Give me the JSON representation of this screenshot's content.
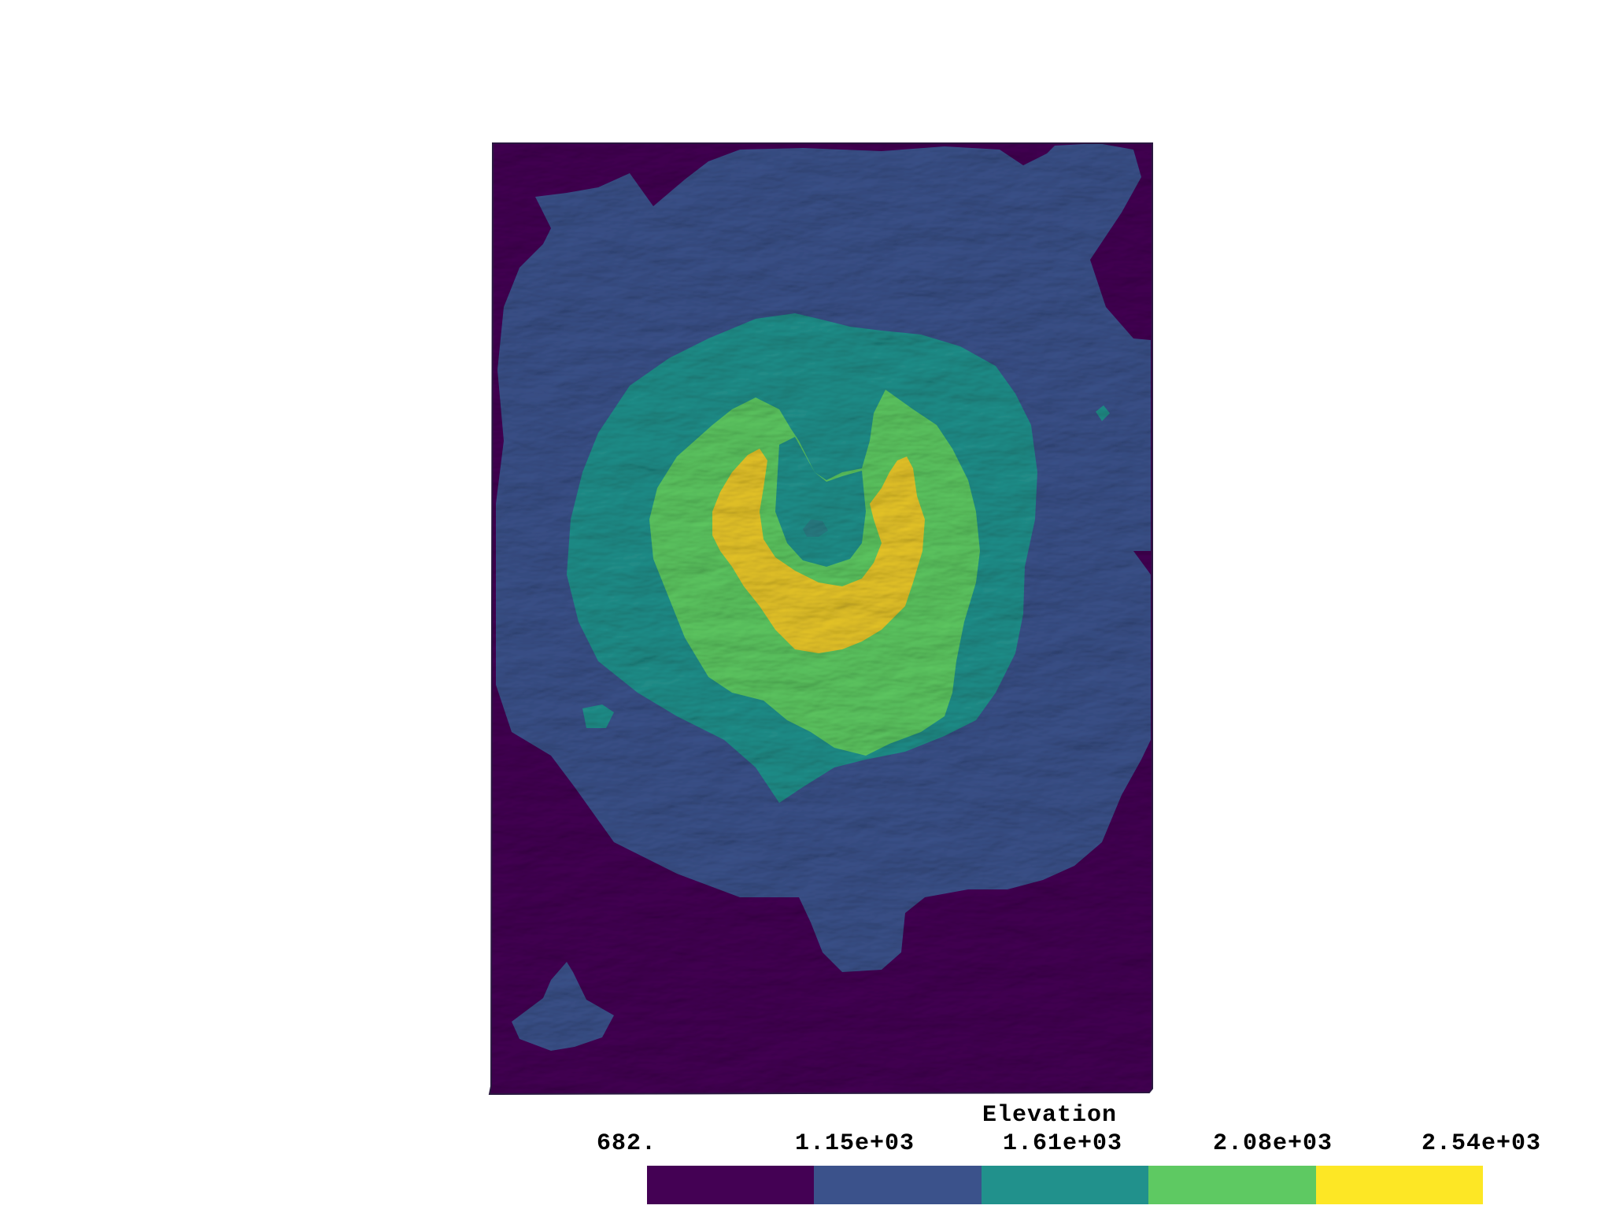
{
  "legend": {
    "title": "Elevation",
    "ticks": [
      "682.",
      "1.15e+03",
      "1.61e+03",
      "2.08e+03",
      "2.54e+03"
    ],
    "colors": [
      "#440154",
      "#3b528b",
      "#21918c",
      "#5ec962",
      "#fde725"
    ]
  },
  "map": {
    "colors": {
      "low": "#440154",
      "mid_low": "#3b528b",
      "mid": "#21918c",
      "mid_high": "#5ec962",
      "high": "#fde725",
      "background": "#ffffff"
    }
  }
}
